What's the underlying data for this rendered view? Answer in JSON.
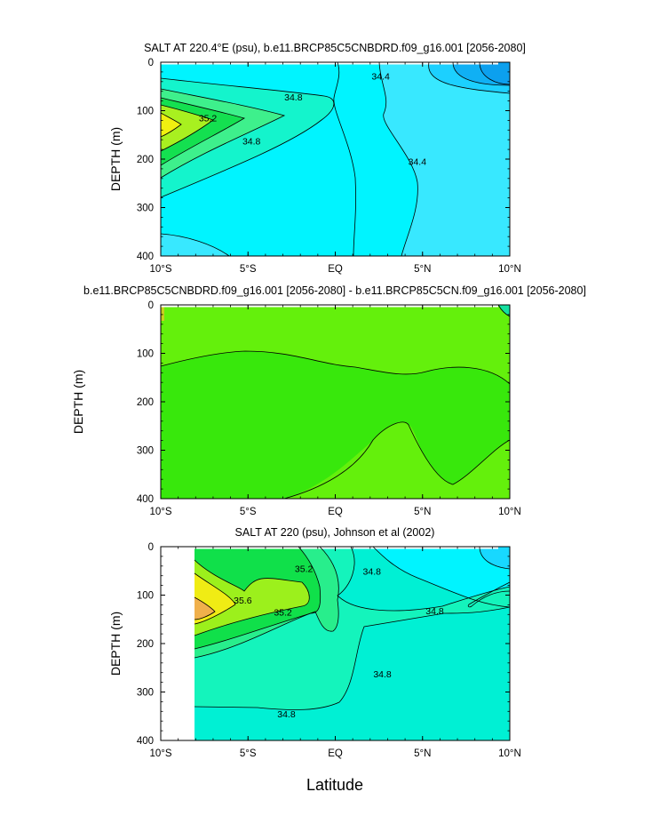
{
  "chart_data": [
    {
      "type": "contour",
      "title": "SALT AT 220.4°E (psu), b.e11.BRCP85C5CNBDRD.f09_g16.001 [2056-2080]",
      "xlabel": "",
      "ylabel": "DEPTH (m)",
      "xlim": [
        -10,
        10
      ],
      "ylim": [
        0,
        400
      ],
      "y_inverted": true,
      "x_ticks": [
        "10°S",
        "5°S",
        "EQ",
        "5°N",
        "10°N"
      ],
      "y_ticks": [
        "0",
        "100",
        "200",
        "300",
        "400"
      ],
      "contour_labels": [
        {
          "text": "34.8",
          "x": -2.4,
          "y": 72
        },
        {
          "text": "35.2",
          "x": -7.3,
          "y": 115
        },
        {
          "text": "34.8",
          "x": -4.8,
          "y": 162
        },
        {
          "text": "34.4",
          "x": 2.6,
          "y": 28
        },
        {
          "text": "34.4",
          "x": 4.7,
          "y": 205
        }
      ]
    },
    {
      "type": "contour",
      "title": "b.e11.BRCP85C5CNBDRD.f09_g16.001 [2056-2080] - b.e11.BRCP85C5CN.f09_g16.001 [2056-2080]",
      "xlabel": "",
      "ylabel": "DEPTH (m)",
      "xlim": [
        -10,
        10
      ],
      "ylim": [
        0,
        400
      ],
      "y_inverted": true,
      "x_ticks": [
        "10°S",
        "5°S",
        "EQ",
        "5°N",
        "10°N"
      ],
      "y_ticks": [
        "0",
        "100",
        "200",
        "300",
        "400"
      ],
      "contour_labels": []
    },
    {
      "type": "contour",
      "title": "SALT AT 220 (psu), Johnson et al (2002)",
      "xlabel": "Latitude",
      "ylabel": "DEPTH (m)",
      "xlim": [
        -10,
        10
      ],
      "ylim": [
        0,
        400
      ],
      "y_inverted": true,
      "data_x_range": [
        -8,
        10
      ],
      "x_ticks": [
        "10°S",
        "5°S",
        "EQ",
        "5°N",
        "10°N"
      ],
      "y_ticks": [
        "0",
        "100",
        "200",
        "300",
        "400"
      ],
      "contour_labels": [
        {
          "text": "35.2",
          "x": -1.8,
          "y": 45
        },
        {
          "text": "35.6",
          "x": -5.3,
          "y": 110
        },
        {
          "text": "35.2",
          "x": -3.0,
          "y": 135
        },
        {
          "text": "34.8",
          "x": 2.1,
          "y": 50
        },
        {
          "text": "34.8",
          "x": 5.7,
          "y": 132
        },
        {
          "text": "34.8",
          "x": 2.7,
          "y": 262
        },
        {
          "text": "34.8",
          "x": -2.8,
          "y": 345
        }
      ]
    }
  ]
}
